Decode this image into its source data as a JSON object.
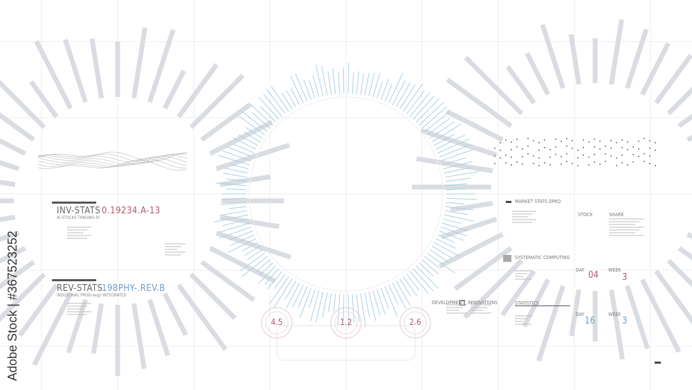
{
  "left_panel": {
    "inv_title": "INV-STATS",
    "inv_code": "0.19234.A-13",
    "inv_subtitle": "AI STOCKS TRADING IV",
    "rev_title": "REV-STATS",
    "rev_code": "198PHY-.REV.B",
    "rev_subtitle": "INDUSTRIAL PROD-seg// INTEGRATED"
  },
  "center": {
    "gauges": [
      "4.5",
      "1.2",
      "2.6"
    ],
    "development_label": "DEVELOPMENT",
    "innovations_label": "INNOVATIONS"
  },
  "right_panel": {
    "market_title": "MARKET STATS DPKO",
    "stock_label": "STOCK",
    "share_label": "SHARE",
    "systematic_title": "SYSTEMATIC COMPUTING",
    "statistics_title": "STATISTICS",
    "day_label": "DAY",
    "week_label": "WEEK",
    "day1": "04",
    "week1": "3",
    "day2": "16",
    "week2": "3"
  },
  "watermark": {
    "text": "Adobe Stock",
    "id": "#367523252"
  },
  "colors": {
    "accent_red": "#b05a6e",
    "accent_blue": "#6f9fc8",
    "ray_blue": "#a9cfe0",
    "ray_grey": "#d9dde2"
  }
}
